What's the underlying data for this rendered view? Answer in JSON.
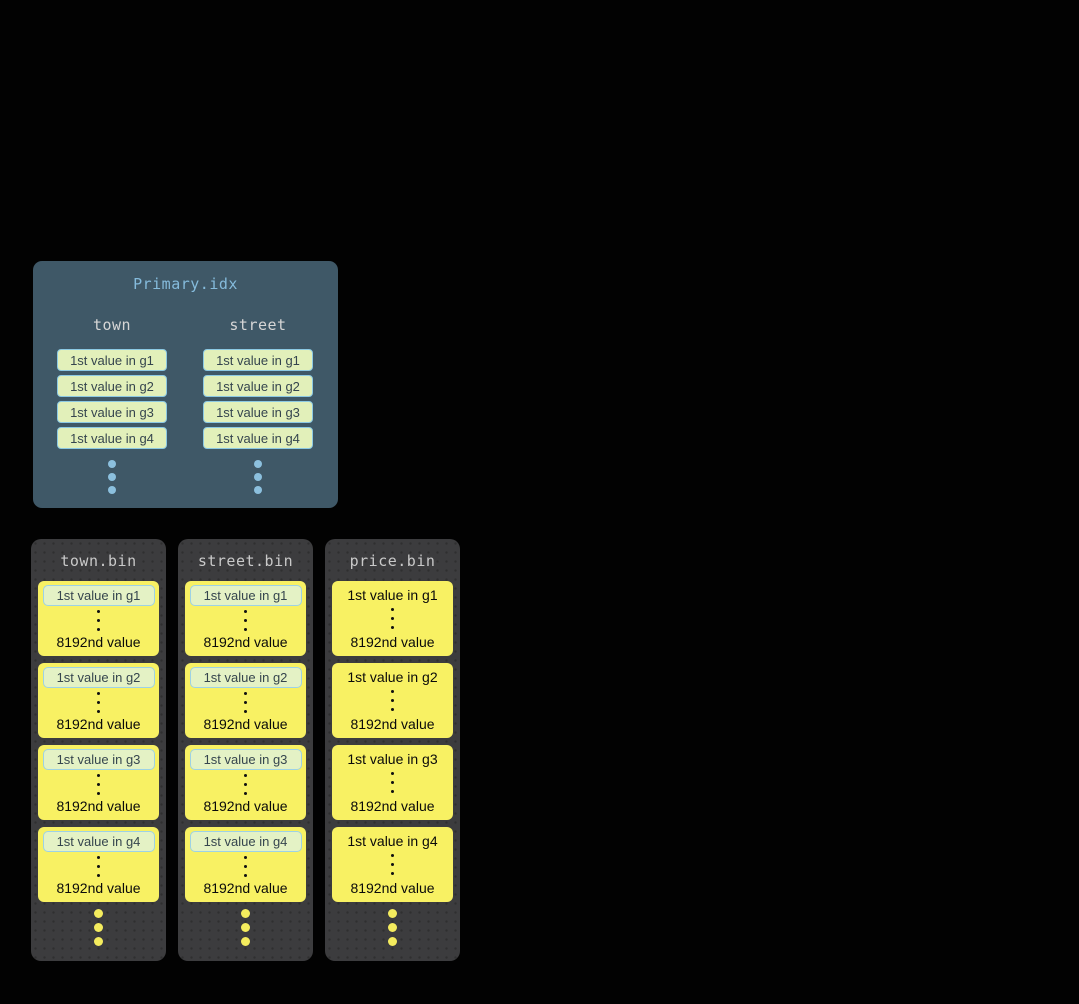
{
  "primary_index": {
    "title": "Primary.idx",
    "columns": [
      {
        "header": "town",
        "entries": [
          "1st value in g1",
          "1st value in g2",
          "1st value in g3",
          "1st value in g4"
        ]
      },
      {
        "header": "street",
        "entries": [
          "1st value in g1",
          "1st value in g2",
          "1st value in g3",
          "1st value in g4"
        ]
      }
    ]
  },
  "bin_files": [
    {
      "title": "town.bin",
      "first_highlighted": true,
      "granules": [
        {
          "first": "1st value in g1",
          "last": "8192nd value"
        },
        {
          "first": "1st value in g2",
          "last": "8192nd value"
        },
        {
          "first": "1st value in g3",
          "last": "8192nd value"
        },
        {
          "first": "1st value in g4",
          "last": "8192nd value"
        }
      ]
    },
    {
      "title": "street.bin",
      "first_highlighted": true,
      "granules": [
        {
          "first": "1st value in g1",
          "last": "8192nd value"
        },
        {
          "first": "1st value in g2",
          "last": "8192nd value"
        },
        {
          "first": "1st value in g3",
          "last": "8192nd value"
        },
        {
          "first": "1st value in g4",
          "last": "8192nd value"
        }
      ]
    },
    {
      "title": "price.bin",
      "first_highlighted": false,
      "granules": [
        {
          "first": "1st value in g1",
          "last": "8192nd value"
        },
        {
          "first": "1st value in g2",
          "last": "8192nd value"
        },
        {
          "first": "1st value in g3",
          "last": "8192nd value"
        },
        {
          "first": "1st value in g4",
          "last": "8192nd value"
        }
      ]
    }
  ],
  "colors": {
    "background": "#020202",
    "primary_box": "#3f5867",
    "primary_title": "#85bbdc",
    "column_header": "#d6d6d6",
    "chip_bg": "#e2f0ba",
    "chip_border": "#8cc9e3",
    "chip_text": "#35454e",
    "bin_box": "#3c3c3e",
    "bin_title": "#c9c9c9",
    "card_bg": "#f8f163",
    "card_text": "#0a0a0a",
    "blue_dots": "#8cc0de",
    "yellow_dots": "#f4ec5e"
  }
}
